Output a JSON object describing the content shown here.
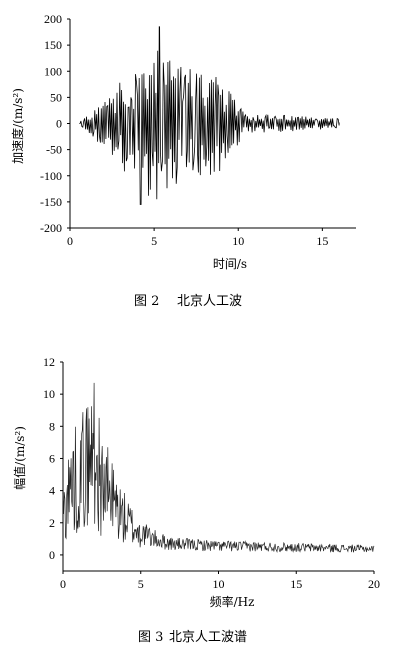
{
  "chart_data": [
    {
      "type": "line",
      "caption_num": "图 2",
      "caption_text": "北京人工波",
      "xlabel": "时间/s",
      "ylabel_cn": "加速度",
      "ylabel_unit": "/(m/s²)",
      "xlim": [
        0,
        17
      ],
      "ylim": [
        -200,
        200
      ],
      "x_ticks": [
        0,
        5,
        10,
        15
      ],
      "y_ticks": [
        -200,
        -150,
        -100,
        -50,
        0,
        50,
        100,
        150,
        200
      ],
      "series": [
        {
          "duration": 16,
          "peak_positive": 185,
          "peak_positive_time": 5.3,
          "peak_negative": -155,
          "peak_negative_time": 4.2,
          "envelope": [
            {
              "x": 0.6,
              "y": 5
            },
            {
              "x": 1.5,
              "y": 30
            },
            {
              "x": 2.5,
              "y": 70
            },
            {
              "x": 3.5,
              "y": 100
            },
            {
              "x": 4.5,
              "y": 130
            },
            {
              "x": 5.3,
              "y": 185
            },
            {
              "x": 6.5,
              "y": 110
            },
            {
              "x": 8.5,
              "y": 115
            },
            {
              "x": 9.5,
              "y": 60
            },
            {
              "x": 10.5,
              "y": 20
            },
            {
              "x": 16,
              "y": 10
            }
          ]
        }
      ]
    },
    {
      "type": "line",
      "caption_num": "图 3",
      "caption_text": "北京人工波谱",
      "xlabel": "频率/Hz",
      "ylabel_cn": "幅值",
      "ylabel_unit": "/(m/s²)",
      "xlim": [
        0,
        20
      ],
      "ylim": [
        -1,
        12
      ],
      "x_ticks": [
        0,
        5,
        10,
        15,
        20
      ],
      "y_ticks": [
        0,
        2,
        4,
        6,
        8,
        10,
        12
      ],
      "series": [
        {
          "peak": 10.7,
          "peak_freq": 2.0,
          "envelope": [
            {
              "x": 0,
              "y": 4.5
            },
            {
              "x": 0.5,
              "y": 7.5
            },
            {
              "x": 1.0,
              "y": 8.5
            },
            {
              "x": 1.5,
              "y": 9.8
            },
            {
              "x": 2.0,
              "y": 10.7
            },
            {
              "x": 2.5,
              "y": 7.5
            },
            {
              "x": 3.0,
              "y": 6.5
            },
            {
              "x": 3.5,
              "y": 5.0
            },
            {
              "x": 4.0,
              "y": 3.8
            },
            {
              "x": 5.0,
              "y": 2.2
            },
            {
              "x": 6.0,
              "y": 1.5
            },
            {
              "x": 7.0,
              "y": 1.1
            },
            {
              "x": 10.0,
              "y": 0.9
            },
            {
              "x": 20.0,
              "y": 0.6
            }
          ]
        }
      ]
    }
  ]
}
